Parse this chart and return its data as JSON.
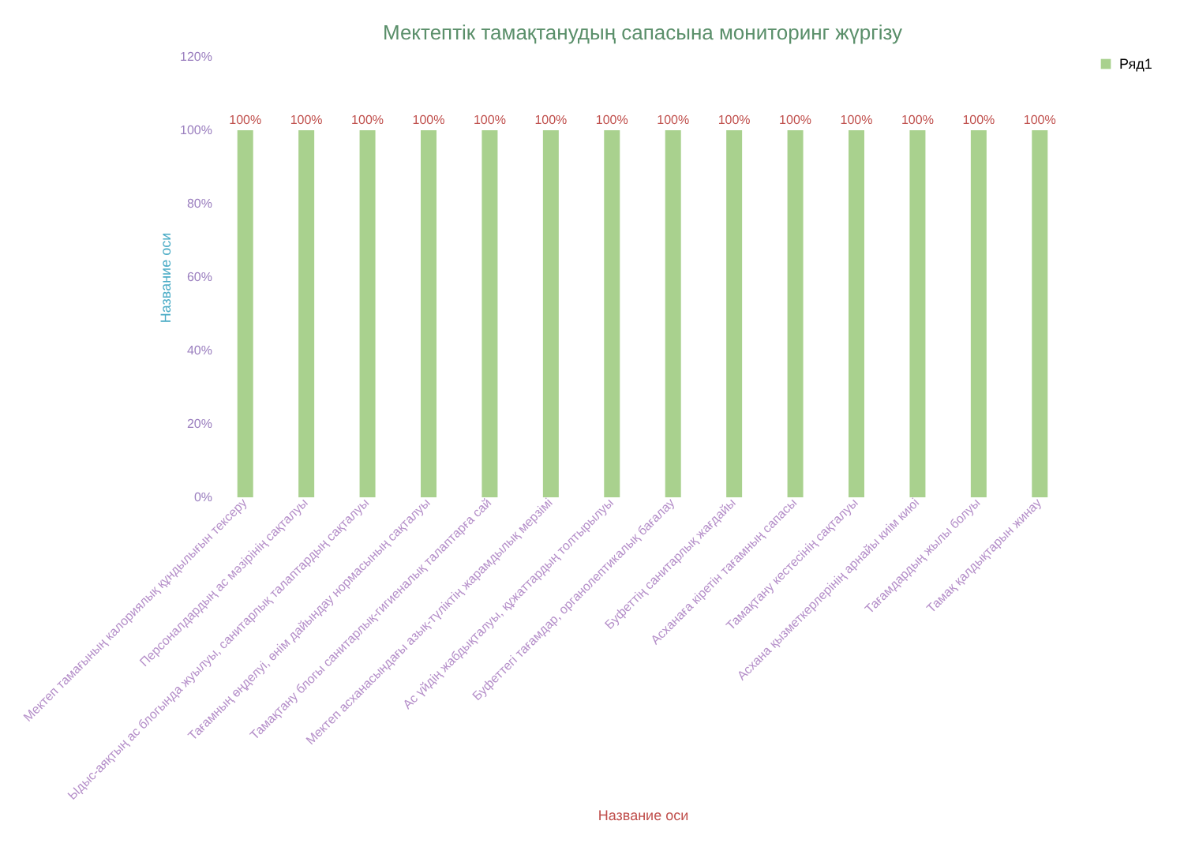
{
  "chart_data": {
    "type": "bar",
    "title": "Мектептік  тамақтанудың  сапасына  мониторинг  жүргізу",
    "xlabel": "Название оси",
    "ylabel": "Название оси",
    "categories": [
      "Мектеп тамағының калориялық құндылығын тексеру",
      "Персоналдардың ас мәзірінің сақталуы",
      "Ыдыс-аяқтың ас блогында жуылуы, санитарлық талаптардың сақталуы",
      "Тағамның өңделуі, өнім дайындау нормасының сақталуы",
      "Тамақтану блогы санитарлық-гигиеналық талаптарға сай",
      "Мектеп асханасындағы азық-түліктің жарамдылық мерзімі",
      "Ас үйдің жабдықталуы, құжаттардың толтырылуы",
      "Буфеттегі тағамдар, органолептикалық бағалау",
      "Буфеттің санитарлық жағдайы",
      "Асханаға кіретін тағамның сапасы",
      "Тамақтану кестесінің сақталуы",
      "Асхана қызметкерлерінің арнайы киім киюі",
      "Тағамдардың жылы болуы",
      "Тамақ қалдықтарын жинау"
    ],
    "series": [
      {
        "name": "Ряд1",
        "color": "#a9d18e",
        "values": [
          100,
          100,
          100,
          100,
          100,
          100,
          100,
          100,
          100,
          100,
          100,
          100,
          100,
          100
        ]
      }
    ],
    "ylim": [
      0,
      120
    ],
    "yticks": [
      {
        "value": 0,
        "label": "0%"
      },
      {
        "value": 20,
        "label": "20%"
      },
      {
        "value": 40,
        "label": "40%"
      },
      {
        "value": 60,
        "label": "60%"
      },
      {
        "value": 80,
        "label": "80%"
      },
      {
        "value": 100,
        "label": "100%"
      },
      {
        "value": 120,
        "label": "120%"
      }
    ],
    "value_labels": [
      "100%",
      "100%",
      "100%",
      "100%",
      "100%",
      "100%",
      "100%",
      "100%",
      "100%",
      "100%",
      "100%",
      "100%",
      "100%",
      "100%"
    ],
    "grid": false,
    "legend": "right"
  }
}
